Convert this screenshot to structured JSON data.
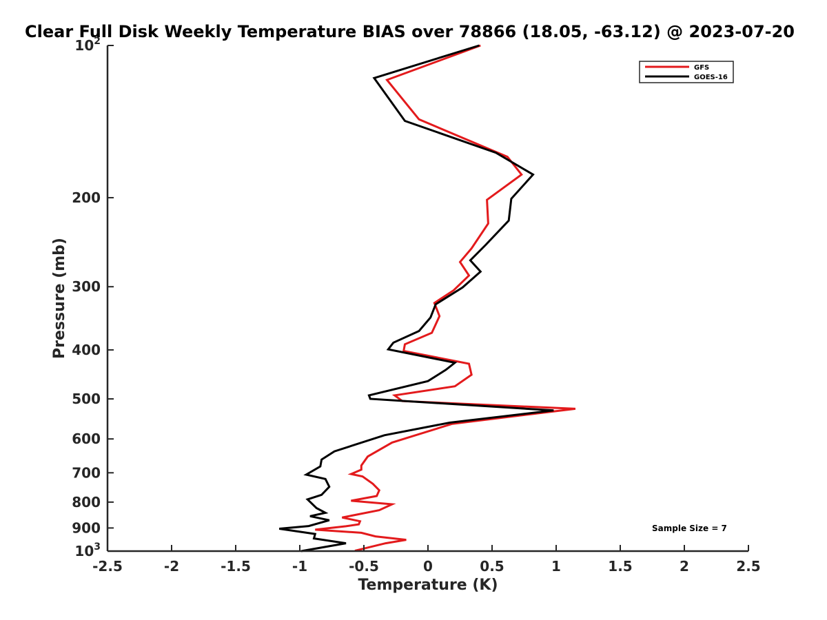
{
  "chart_data": {
    "type": "line",
    "title": "Clear Full Disk Weekly Temperature BIAS over 78866 (18.05, -63.12) @ 2023-07-20",
    "xlabel": "Temperature (K)",
    "ylabel": "Pressure (mb)",
    "xlim": [
      -2.5,
      2.5
    ],
    "ylim": [
      100,
      1000
    ],
    "y_scale": "log",
    "y_reversed": true,
    "grid": false,
    "legend_position": "top-right",
    "x_ticks": [
      "-2.5",
      "-2",
      "-1.5",
      "-1",
      "-0.5",
      "0",
      "0.5",
      "1",
      "1.5",
      "2",
      "2.5"
    ],
    "x_tick_values": [
      -2.5,
      -2,
      -1.5,
      -1,
      -0.5,
      0,
      0.5,
      1,
      1.5,
      2,
      2.5
    ],
    "y_ticks": [
      {
        "value": 100,
        "base": "10",
        "exp": "2"
      },
      {
        "value": 200,
        "base": "200",
        "exp": ""
      },
      {
        "value": 300,
        "base": "300",
        "exp": ""
      },
      {
        "value": 400,
        "base": "400",
        "exp": ""
      },
      {
        "value": 500,
        "base": "500",
        "exp": ""
      },
      {
        "value": 600,
        "base": "600",
        "exp": ""
      },
      {
        "value": 700,
        "base": "700",
        "exp": ""
      },
      {
        "value": 800,
        "base": "800",
        "exp": ""
      },
      {
        "value": 900,
        "base": "900",
        "exp": ""
      },
      {
        "value": 1000,
        "base": "10",
        "exp": "3"
      }
    ],
    "series": [
      {
        "name": "GFS",
        "color": "#e31a1c",
        "points": [
          [
            0.41,
            100
          ],
          [
            -0.32,
            117
          ],
          [
            -0.07,
            140
          ],
          [
            0.62,
            166
          ],
          [
            0.73,
            180
          ],
          [
            0.46,
            202
          ],
          [
            0.47,
            225
          ],
          [
            0.34,
            252
          ],
          [
            0.25,
            268
          ],
          [
            0.32,
            285
          ],
          [
            0.2,
            305
          ],
          [
            0.05,
            323
          ],
          [
            0.09,
            343
          ],
          [
            0.03,
            370
          ],
          [
            -0.18,
            390
          ],
          [
            -0.19,
            402
          ],
          [
            0.32,
            426
          ],
          [
            0.34,
            448
          ],
          [
            0.21,
            472
          ],
          [
            -0.26,
            492
          ],
          [
            -0.2,
            505
          ],
          [
            1.15,
            523
          ],
          [
            0.19,
            560
          ],
          [
            -0.28,
            610
          ],
          [
            -0.47,
            650
          ],
          [
            -0.52,
            677
          ],
          [
            -0.52,
            690
          ],
          [
            -0.6,
            704
          ],
          [
            -0.51,
            712
          ],
          [
            -0.43,
            736
          ],
          [
            -0.38,
            758
          ],
          [
            -0.4,
            778
          ],
          [
            -0.6,
            795
          ],
          [
            -0.28,
            808
          ],
          [
            -0.38,
            830
          ],
          [
            -0.67,
            858
          ],
          [
            -0.53,
            873
          ],
          [
            -0.54,
            885
          ],
          [
            -0.64,
            893
          ],
          [
            -0.88,
            907
          ],
          [
            -0.52,
            920
          ],
          [
            -0.41,
            935
          ],
          [
            -0.17,
            950
          ],
          [
            -0.33,
            965
          ],
          [
            -0.57,
            998
          ]
        ]
      },
      {
        "name": "GOES-16",
        "color": "#000000",
        "points": [
          [
            0.4,
            100
          ],
          [
            -0.42,
            116
          ],
          [
            -0.18,
            141
          ],
          [
            0.53,
            163
          ],
          [
            0.82,
            180
          ],
          [
            0.65,
            201
          ],
          [
            0.63,
            222
          ],
          [
            0.45,
            248
          ],
          [
            0.33,
            266
          ],
          [
            0.41,
            280
          ],
          [
            0.27,
            301
          ],
          [
            0.06,
            325
          ],
          [
            0.02,
            345
          ],
          [
            -0.07,
            367
          ],
          [
            -0.27,
            387
          ],
          [
            -0.31,
            399
          ],
          [
            0.21,
            424
          ],
          [
            0.14,
            438
          ],
          [
            0.0,
            461
          ],
          [
            -0.46,
            492
          ],
          [
            -0.45,
            500
          ],
          [
            0.98,
            527
          ],
          [
            0.17,
            557
          ],
          [
            -0.34,
            590
          ],
          [
            -0.73,
            635
          ],
          [
            -0.83,
            659
          ],
          [
            -0.84,
            680
          ],
          [
            -0.95,
            706
          ],
          [
            -0.8,
            720
          ],
          [
            -0.77,
            746
          ],
          [
            -0.83,
            774
          ],
          [
            -0.94,
            790
          ],
          [
            -0.87,
            822
          ],
          [
            -0.8,
            840
          ],
          [
            -0.92,
            853
          ],
          [
            -0.77,
            869
          ],
          [
            -0.93,
            892
          ],
          [
            -1.16,
            903
          ],
          [
            -0.88,
            925
          ],
          [
            -0.89,
            944
          ],
          [
            -0.64,
            965
          ],
          [
            -0.99,
            1000
          ]
        ]
      }
    ],
    "annotation": "Sample Size = 7"
  }
}
